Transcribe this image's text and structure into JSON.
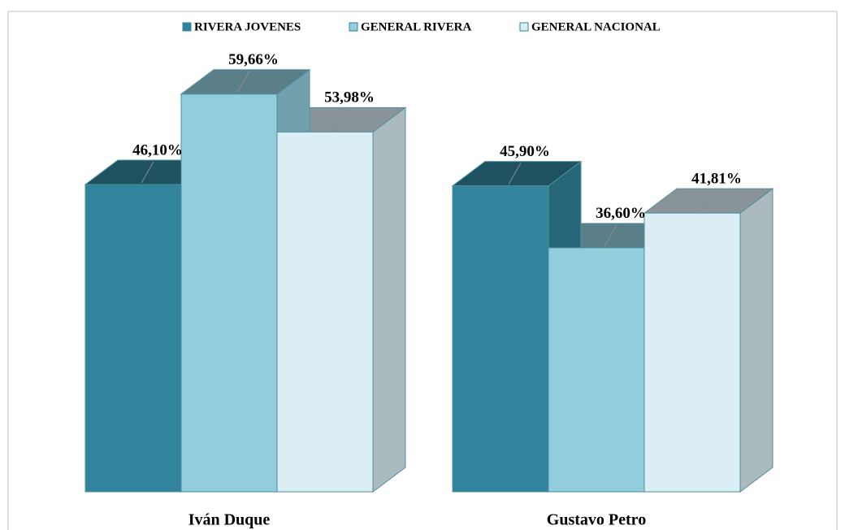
{
  "chart_data": {
    "type": "bar3d",
    "categories": [
      "Iván Duque",
      "Gustavo Petro"
    ],
    "series": [
      {
        "name": "RIVERA JOVENES",
        "color": "#31849b",
        "values": [
          46.1,
          45.9
        ],
        "value_labels": [
          "46,10%",
          "45,90%"
        ]
      },
      {
        "name": "GENERAL RIVERA",
        "color": "#92cddc",
        "values": [
          59.66,
          36.6
        ],
        "value_labels": [
          "59,66%",
          "36,60%"
        ]
      },
      {
        "name": "GENERAL NACIONAL",
        "color": "#dbeef4",
        "values": [
          53.98,
          41.81
        ],
        "value_labels": [
          "53,98%",
          "41,81%"
        ]
      }
    ],
    "legend": "top"
  }
}
